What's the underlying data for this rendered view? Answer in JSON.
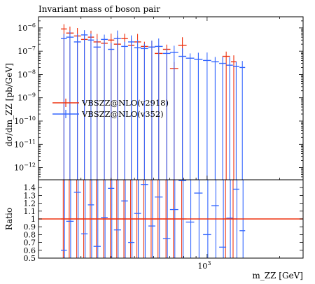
{
  "chart_data": {
    "type": "line",
    "title": "Invariant mass of boson pair",
    "xlabel": "m_ZZ [GeV]",
    "ylabel": "dσ/dm_ZZ [pb/GeV]",
    "ratio_ylabel": "Ratio",
    "x_scale": "log",
    "y_scale": "log",
    "xlim": [
      200,
      2500
    ],
    "ylim": [
      3e-13,
      3e-06
    ],
    "ratio_ylim": [
      0.5,
      1.5
    ],
    "x_tick_labels": [
      {
        "value": 1000,
        "label": "10^3"
      }
    ],
    "y_tick_labels": [
      {
        "value": 1e-12,
        "label": "10^-12"
      },
      {
        "value": 1e-11,
        "label": "10^-11"
      },
      {
        "value": 1e-10,
        "label": "10^-10"
      },
      {
        "value": 1e-09,
        "label": "10^-9"
      },
      {
        "value": 1e-08,
        "label": "10^-8"
      },
      {
        "value": 1e-07,
        "label": "10^-7"
      },
      {
        "value": 1e-06,
        "label": "10^-6"
      }
    ],
    "ratio_tick_labels": [
      "0.5",
      "0.6",
      "0.7",
      "0.8",
      "0.9",
      "1",
      "1.1",
      "1.2",
      "1.3",
      "1.4"
    ],
    "grid": false,
    "legend_position": "center-left",
    "series": [
      {
        "name": "VBSZZ@NLO(v2918)",
        "color": "#ee3311",
        "x": [
          255,
          270,
          290,
          310,
          330,
          350,
          375,
          400,
          425,
          455,
          485,
          515,
          550,
          590,
          630,
          680,
          730,
          790,
          1200,
          1290
        ],
        "y": [
          9e-07,
          6e-07,
          4.5e-07,
          3.2e-07,
          4e-07,
          2.5e-07,
          2.2e-07,
          3e-07,
          2e-07,
          3.5e-07,
          1.8e-07,
          2.5e-07,
          1.6e-07,
          1.5e-07,
          8e-08,
          1.2e-07,
          1.8e-08,
          1.8e-07,
          6e-08,
          3.5e-08
        ]
      },
      {
        "name": "VBSZZ@NLO(v352)",
        "color": "#3366ff",
        "x": [
          255,
          270,
          290,
          310,
          330,
          350,
          375,
          400,
          425,
          455,
          485,
          515,
          550,
          590,
          630,
          680,
          730,
          790,
          850,
          920,
          1000,
          1080,
          1160,
          1240,
          1320,
          1400
        ],
        "y": [
          3.5e-07,
          4e-07,
          2.5e-07,
          5e-07,
          3e-07,
          1.5e-07,
          3.2e-07,
          1.2e-07,
          3.5e-07,
          1.6e-07,
          2.5e-07,
          1.4e-07,
          1.3e-07,
          1.5e-07,
          1.6e-07,
          8e-08,
          9e-08,
          6e-08,
          5e-08,
          4.5e-08,
          4e-08,
          3.5e-08,
          3e-08,
          2.5e-08,
          2.2e-08,
          2e-08
        ]
      }
    ]
  }
}
